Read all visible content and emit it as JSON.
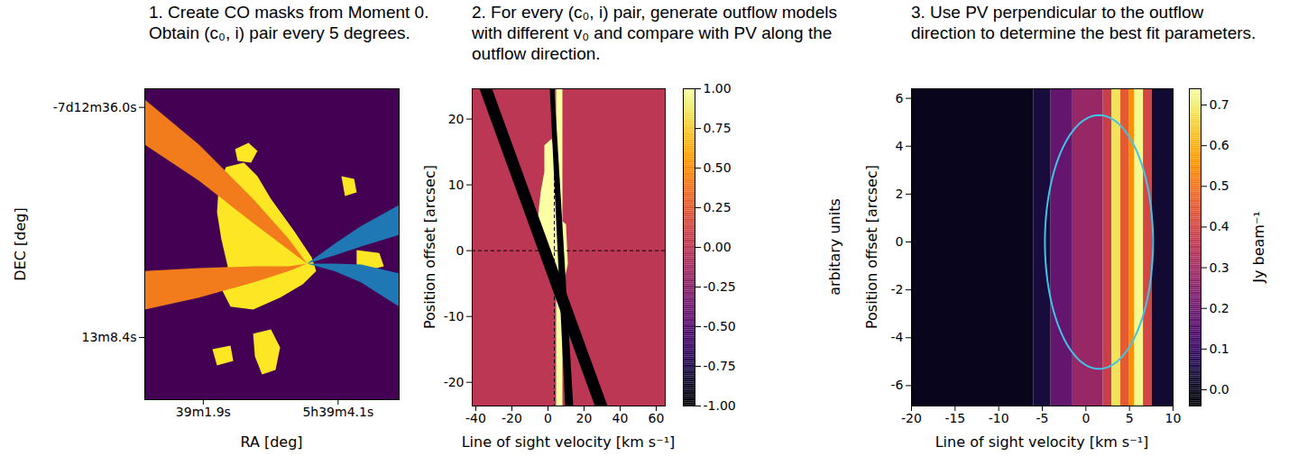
{
  "chart_data": [
    {
      "type": "mask",
      "title": "1. Create CO masks from Moment 0. Obtain (c₀, i) pair every 5 degrees.",
      "x_label": "RA [deg]",
      "y_label": "DEC [deg]",
      "xlim": [
        0,
        100
      ],
      "ylim": [
        0,
        100
      ],
      "xticks": [
        {
          "value": 23,
          "label": "39m1.9s"
        },
        {
          "value": 76,
          "label": "5h39m4.1s"
        }
      ],
      "yticks": [
        {
          "value": 94,
          "label": "-7d12m36.0s"
        },
        {
          "value": 20,
          "label": "13m8.4s"
        }
      ],
      "background_color": "#440154",
      "regions": [
        {
          "color": "#fde725",
          "points": [
            [
              31.9,
              74.8
            ],
            [
              39.0,
              76.2
            ],
            [
              44.3,
              71.9
            ],
            [
              49.6,
              64.6
            ],
            [
              58.5,
              54.5
            ],
            [
              65.6,
              45.8
            ],
            [
              67.4,
              41.4
            ],
            [
              62.1,
              37.1
            ],
            [
              53.2,
              32.8
            ],
            [
              42.6,
              29.0
            ],
            [
              33.7,
              29.9
            ],
            [
              30.1,
              35.7
            ],
            [
              32.6,
              42.9
            ],
            [
              30.1,
              51.6
            ],
            [
              28.4,
              60.3
            ],
            [
              29.1,
              69.0
            ]
          ]
        },
        {
          "color": "#fde725",
          "points": [
            [
              35.5,
              80.6
            ],
            [
              40.8,
              82.6
            ],
            [
              44.3,
              80.0
            ],
            [
              41.8,
              76.2
            ],
            [
              36.5,
              76.8
            ]
          ]
        },
        {
          "color": "#fde725",
          "points": [
            [
              77.3,
              71.9
            ],
            [
              82.3,
              71.0
            ],
            [
              83.3,
              66.7
            ],
            [
              78.7,
              65.5
            ]
          ]
        },
        {
          "color": "#fde725",
          "points": [
            [
              83.3,
              48.1
            ],
            [
              92.2,
              47.2
            ],
            [
              94.0,
              42.9
            ],
            [
              86.9,
              41.4
            ],
            [
              83.3,
              42.3
            ]
          ]
        },
        {
          "color": "#fde725",
          "points": [
            [
              42.6,
              21.2
            ],
            [
              49.6,
              22.6
            ],
            [
              53.2,
              16.8
            ],
            [
              51.4,
              9.6
            ],
            [
              46.1,
              8.1
            ],
            [
              43.3,
              13.9
            ]
          ]
        },
        {
          "color": "#fde725",
          "points": [
            [
              26.6,
              16.2
            ],
            [
              33.7,
              17.4
            ],
            [
              34.8,
              12.5
            ],
            [
              28.4,
              11.0
            ]
          ]
        },
        {
          "color": "#f27c1c",
          "points": [
            [
              0,
              96.5
            ],
            [
              21.3,
              82.0
            ],
            [
              42.6,
              64.6
            ],
            [
              56.7,
              51.6
            ],
            [
              63.8,
              43.8
            ],
            [
              56.7,
              48.1
            ],
            [
              42.6,
              56.8
            ],
            [
              21.3,
              70.4
            ],
            [
              0,
              82.0
            ]
          ]
        },
        {
          "color": "#f27c1c",
          "points": [
            [
              0,
              29.0
            ],
            [
              21.3,
              32.8
            ],
            [
              42.6,
              37.7
            ],
            [
              56.7,
              41.4
            ],
            [
              63.8,
              43.8
            ],
            [
              56.7,
              42.9
            ],
            [
              42.6,
              42.9
            ],
            [
              21.3,
              42.3
            ],
            [
              0,
              41.4
            ]
          ]
        },
        {
          "color": "#1f77b4",
          "points": [
            [
              63.8,
              43.8
            ],
            [
              74.5,
              50.1
            ],
            [
              85.1,
              55.9
            ],
            [
              100,
              62.6
            ],
            [
              100,
              53.0
            ],
            [
              85.1,
              49.3
            ],
            [
              74.5,
              46.4
            ]
          ]
        },
        {
          "color": "#1f77b4",
          "points": [
            [
              63.8,
              43.8
            ],
            [
              74.5,
              41.4
            ],
            [
              85.1,
              37.7
            ],
            [
              100,
              29.9
            ],
            [
              100,
              40.6
            ],
            [
              85.1,
              43.5
            ],
            [
              74.5,
              43.8
            ]
          ]
        }
      ]
    },
    {
      "type": "heatmap",
      "title": "2. For every (c₀, i) pair, generate outflow models with different v₀ and compare with PV along the outflow direction.",
      "x_label": "Line of sight velocity [km s⁻¹]",
      "y_label": "Position offset [arcsec]",
      "xlim": [
        -42,
        65
      ],
      "ylim": [
        -23.6,
        24.6
      ],
      "xticks": [
        -40,
        -20,
        0,
        20,
        40,
        60
      ],
      "yticks": [
        -20,
        -10,
        0,
        10,
        20
      ],
      "background": 0,
      "regions": [
        {
          "value": 1,
          "points": [
            [
              4.5,
              24.6
            ],
            [
              8,
              24.6
            ],
            [
              8,
              -23.6
            ],
            [
              4.5,
              -23.6
            ]
          ]
        },
        {
          "value": 1,
          "points": [
            [
              -2,
              16
            ],
            [
              2,
              17
            ],
            [
              6,
              13
            ],
            [
              6,
              5
            ],
            [
              10,
              4
            ],
            [
              11,
              -2
            ],
            [
              8,
              -6
            ],
            [
              5,
              -4
            ],
            [
              1,
              -1
            ],
            [
              -3,
              1
            ],
            [
              -6,
              4
            ],
            [
              -4,
              9
            ],
            [
              -2,
              12
            ]
          ]
        },
        {
          "value": -1,
          "points": [
            [
              -38,
              24.6
            ],
            [
              -31,
              24.6
            ],
            [
              33,
              -23.6
            ],
            [
              26,
              -23.6
            ]
          ]
        },
        {
          "value": -1,
          "points": [
            [
              1,
              24.6
            ],
            [
              3.5,
              24.6
            ],
            [
              14,
              -23.6
            ],
            [
              9.5,
              -23.6
            ]
          ]
        }
      ],
      "reference_lines": {
        "x": 3.5,
        "y": 0,
        "line_style": "dashed"
      },
      "colorbar": {
        "label": "arbitary units",
        "range": [
          -1,
          1
        ],
        "ticks": [
          {
            "value": -1,
            "label": "-1.00"
          },
          {
            "value": -0.75,
            "label": "-0.75"
          },
          {
            "value": -0.5,
            "label": "-0.50"
          },
          {
            "value": -0.25,
            "label": "-0.25"
          },
          {
            "value": 0,
            "label": "0.00"
          },
          {
            "value": 0.25,
            "label": "0.25"
          },
          {
            "value": 0.5,
            "label": "0.50"
          },
          {
            "value": 0.75,
            "label": "0.75"
          },
          {
            "value": 1,
            "label": "1.00"
          }
        ]
      }
    },
    {
      "type": "heatmap",
      "title": "3. Use PV perpendicular to the outflow direction to determine the best fit parameters.",
      "x_label": "Line of sight velocity [km s⁻¹]",
      "y_label": "Position offset [arcsec]",
      "xlim": [
        -20,
        10
      ],
      "ylim": [
        -6.85,
        6.4
      ],
      "xticks": [
        -20,
        -15,
        -10,
        -5,
        0,
        5,
        10
      ],
      "yticks": [
        -6,
        -4,
        -2,
        0,
        2,
        4,
        6
      ],
      "bands": [
        {
          "from": -20,
          "to": -6,
          "value": 0
        },
        {
          "from": -6,
          "to": -4,
          "value": 0.04
        },
        {
          "from": -4,
          "to": -1.5,
          "value": 0.18
        },
        {
          "from": -1.5,
          "to": 2,
          "value": 0.28
        },
        {
          "from": 2,
          "to": 3,
          "value": 0.38
        },
        {
          "from": 3,
          "to": 4,
          "value": 0.68
        },
        {
          "from": 4,
          "to": 5,
          "value": 0.45
        },
        {
          "from": 5,
          "to": 5.6,
          "value": 0.55
        },
        {
          "from": 5.6,
          "to": 6.6,
          "value": 0.72
        },
        {
          "from": 6.6,
          "to": 7.6,
          "value": 0.4
        },
        {
          "from": 7.6,
          "to": 10,
          "value": 0.03
        }
      ],
      "ellipse": {
        "center": [
          1.5,
          0
        ],
        "radii": [
          6.2,
          5.3
        ],
        "color": "#40c4e8"
      },
      "colorbar": {
        "label": "Jy beam⁻¹",
        "range": [
          -0.04,
          0.74
        ],
        "ticks": [
          {
            "value": 0,
            "label": "0.0"
          },
          0.1,
          0.2,
          0.3,
          0.4,
          0.5,
          0.6,
          0.7
        ]
      }
    }
  ]
}
